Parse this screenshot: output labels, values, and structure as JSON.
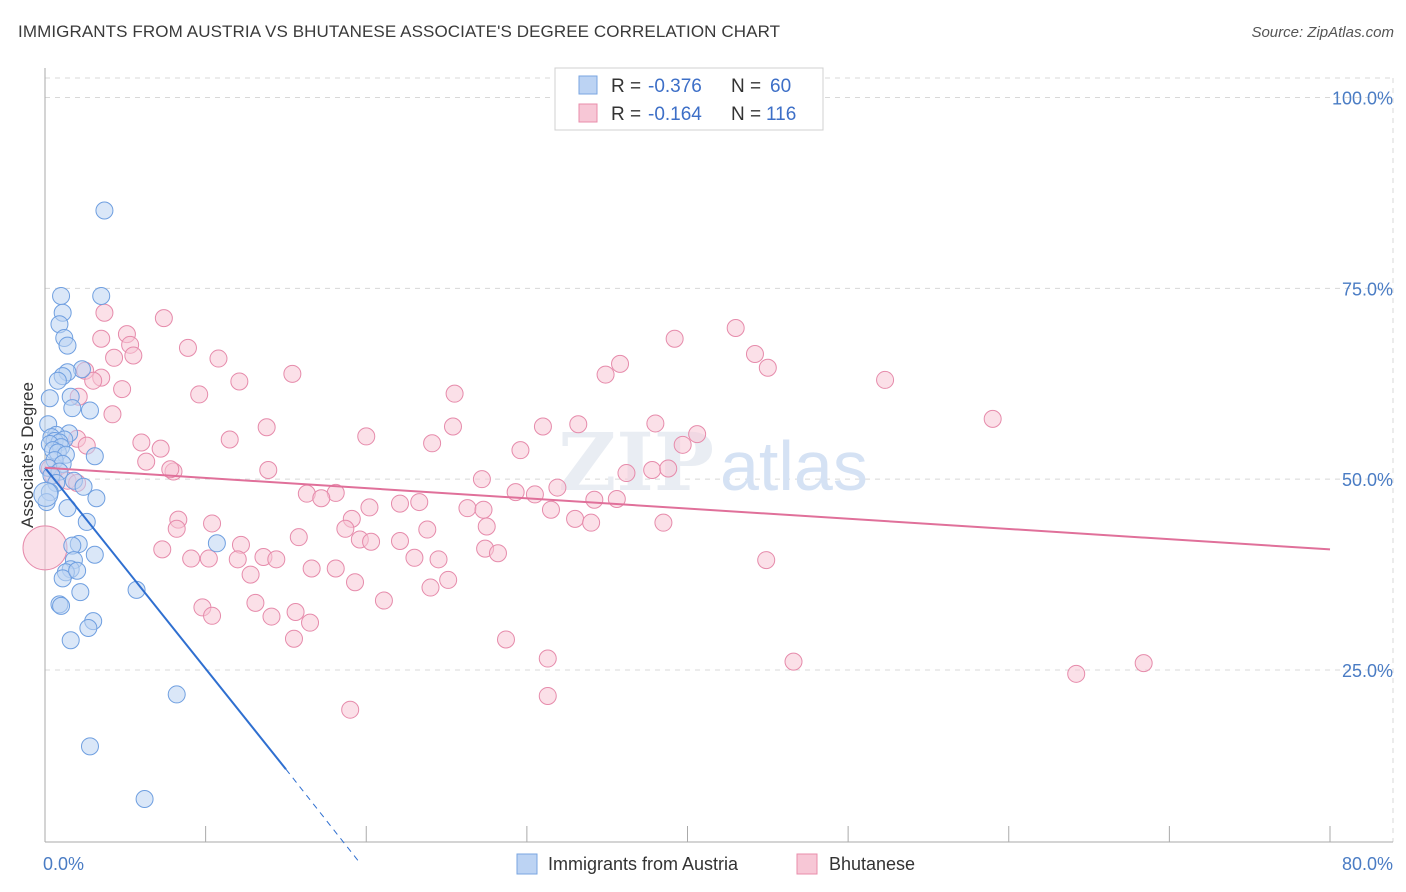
{
  "header": {
    "title": "IMMIGRANTS FROM AUSTRIA VS BHUTANESE ASSOCIATE'S DEGREE CORRELATION CHART",
    "source": "Source: ZipAtlas.com"
  },
  "watermark": {
    "part1": "ZIP",
    "part2": "atlas"
  },
  "legend": {
    "rows": [
      {
        "r_label": "R =",
        "r_value": "-0.376",
        "n_label": "N =",
        "n_value": "60",
        "color": "#7aa6e0",
        "fill": "#bcd3f3"
      },
      {
        "r_label": "R =",
        "r_value": "-0.164",
        "n_label": "N =",
        "n_value": "116",
        "color": "#e98cab",
        "fill": "#f7c7d6"
      }
    ]
  },
  "colors": {
    "blue": "#6f9fe0",
    "blue_line": "#2f6fd0",
    "pink": "#e68bab",
    "pink_line": "#e0709a",
    "grid": "#d8d8d8",
    "accent": "#4a7cc4"
  },
  "chart_data": {
    "type": "scatter",
    "title": "IMMIGRANTS FROM AUSTRIA VS BHUTANESE ASSOCIATE'S DEGREE CORRELATION CHART",
    "xlabel": "",
    "ylabel": "Associate's Degree",
    "xlim": [
      0,
      80
    ],
    "ylim": [
      0,
      105
    ],
    "x_tick_labels": [
      "0.0%",
      "80.0%"
    ],
    "y_ticks": [
      25,
      50,
      75,
      100
    ],
    "y_tick_labels": [
      "25.0%",
      "50.0%",
      "75.0%",
      "100.0%"
    ],
    "grid": true,
    "legend_position": "top-center",
    "series": [
      {
        "name": "Immigrants from Austria",
        "color": "#6f9fe0",
        "trend": {
          "x": [
            0,
            15
          ],
          "y": [
            51.5,
            12
          ],
          "dashed_to": [
            19.5,
            0
          ]
        },
        "points": [
          [
            3.7,
            85.2
          ],
          [
            1.0,
            74.0
          ],
          [
            3.5,
            74.0
          ],
          [
            1.1,
            71.8
          ],
          [
            0.9,
            70.3
          ],
          [
            1.2,
            68.5
          ],
          [
            1.4,
            67.5
          ],
          [
            2.3,
            64.4
          ],
          [
            1.4,
            64.0
          ],
          [
            1.1,
            63.5
          ],
          [
            0.8,
            62.9
          ],
          [
            1.6,
            60.8
          ],
          [
            0.3,
            60.6
          ],
          [
            1.7,
            59.3
          ],
          [
            2.8,
            59.0
          ],
          [
            0.2,
            57.2
          ],
          [
            1.5,
            56.0
          ],
          [
            0.7,
            55.8
          ],
          [
            0.4,
            55.5
          ],
          [
            1.2,
            55.2
          ],
          [
            0.6,
            55.0
          ],
          [
            0.9,
            54.8
          ],
          [
            0.3,
            54.6
          ],
          [
            1.0,
            54.2
          ],
          [
            0.5,
            53.8
          ],
          [
            0.8,
            53.5
          ],
          [
            1.3,
            53.2
          ],
          [
            3.1,
            53.0
          ],
          [
            0.6,
            52.5
          ],
          [
            1.1,
            52.0
          ],
          [
            0.2,
            51.5
          ],
          [
            0.9,
            51.0
          ],
          [
            0.4,
            50.5
          ],
          [
            1.8,
            49.8
          ],
          [
            0.7,
            49.5
          ],
          [
            2.4,
            49.0
          ],
          [
            0.3,
            48.3
          ],
          [
            3.2,
            47.5
          ],
          [
            0.1,
            47.0
          ],
          [
            1.4,
            46.2
          ],
          [
            2.6,
            44.4
          ],
          [
            2.1,
            41.5
          ],
          [
            1.7,
            41.3
          ],
          [
            10.7,
            41.6
          ],
          [
            3.1,
            40.1
          ],
          [
            1.8,
            39.4
          ],
          [
            1.6,
            38.2
          ],
          [
            1.3,
            37.8
          ],
          [
            1.1,
            37.0
          ],
          [
            2.2,
            35.2
          ],
          [
            5.7,
            35.5
          ],
          [
            0.9,
            33.6
          ],
          [
            1.0,
            33.4
          ],
          [
            3.0,
            31.4
          ],
          [
            2.7,
            30.5
          ],
          [
            1.6,
            28.9
          ],
          [
            8.2,
            21.8
          ],
          [
            2.8,
            15.0
          ],
          [
            6.2,
            8.1
          ],
          [
            2.0,
            38.0
          ]
        ]
      },
      {
        "name": "Bhutanese",
        "color": "#e68bab",
        "trend": {
          "x": [
            0,
            80
          ],
          "y": [
            51.5,
            40.8
          ]
        },
        "points": [
          [
            3.7,
            71.8
          ],
          [
            7.4,
            71.1
          ],
          [
            5.1,
            69.0
          ],
          [
            3.5,
            68.4
          ],
          [
            39.2,
            68.4
          ],
          [
            43.0,
            69.8
          ],
          [
            5.3,
            67.6
          ],
          [
            8.9,
            67.2
          ],
          [
            44.2,
            66.4
          ],
          [
            4.3,
            65.9
          ],
          [
            5.5,
            66.2
          ],
          [
            10.8,
            65.8
          ],
          [
            35.8,
            65.1
          ],
          [
            45.0,
            64.6
          ],
          [
            2.5,
            64.2
          ],
          [
            15.4,
            63.8
          ],
          [
            34.9,
            63.7
          ],
          [
            3.5,
            63.3
          ],
          [
            3.0,
            62.9
          ],
          [
            12.1,
            62.8
          ],
          [
            52.3,
            63.0
          ],
          [
            4.8,
            61.8
          ],
          [
            9.6,
            61.1
          ],
          [
            25.5,
            61.2
          ],
          [
            2.1,
            60.8
          ],
          [
            4.2,
            58.5
          ],
          [
            59.0,
            57.9
          ],
          [
            38.0,
            57.3
          ],
          [
            33.2,
            57.2
          ],
          [
            31.0,
            56.9
          ],
          [
            13.8,
            56.8
          ],
          [
            25.4,
            56.9
          ],
          [
            40.6,
            55.9
          ],
          [
            20.0,
            55.6
          ],
          [
            11.5,
            55.2
          ],
          [
            2.0,
            55.3
          ],
          [
            6.0,
            54.8
          ],
          [
            7.2,
            54.0
          ],
          [
            24.1,
            54.7
          ],
          [
            39.7,
            54.5
          ],
          [
            2.6,
            54.4
          ],
          [
            29.6,
            53.8
          ],
          [
            6.3,
            52.3
          ],
          [
            0.3,
            51.4
          ],
          [
            8.0,
            51.0
          ],
          [
            13.9,
            51.2
          ],
          [
            7.8,
            51.3
          ],
          [
            36.2,
            50.8
          ],
          [
            37.8,
            51.2
          ],
          [
            38.8,
            51.4
          ],
          [
            0.5,
            50.5
          ],
          [
            27.2,
            50.0
          ],
          [
            1.4,
            49.8
          ],
          [
            2.0,
            49.5
          ],
          [
            31.9,
            48.9
          ],
          [
            18.1,
            48.2
          ],
          [
            16.3,
            48.1
          ],
          [
            17.2,
            47.5
          ],
          [
            29.3,
            48.3
          ],
          [
            30.5,
            48.0
          ],
          [
            34.2,
            47.3
          ],
          [
            35.6,
            47.4
          ],
          [
            22.1,
            46.8
          ],
          [
            23.3,
            47.0
          ],
          [
            20.2,
            46.3
          ],
          [
            26.3,
            46.2
          ],
          [
            27.3,
            46.0
          ],
          [
            31.5,
            46.0
          ],
          [
            33.0,
            44.8
          ],
          [
            8.3,
            44.7
          ],
          [
            19.1,
            44.8
          ],
          [
            34.0,
            44.3
          ],
          [
            38.5,
            44.3
          ],
          [
            10.4,
            44.2
          ],
          [
            18.7,
            43.5
          ],
          [
            27.5,
            43.8
          ],
          [
            8.2,
            43.5
          ],
          [
            23.8,
            43.4
          ],
          [
            15.8,
            42.4
          ],
          [
            19.6,
            42.1
          ],
          [
            22.1,
            41.9
          ],
          [
            20.3,
            41.8
          ],
          [
            12.2,
            41.4
          ],
          [
            27.4,
            40.9
          ],
          [
            28.2,
            40.3
          ],
          [
            7.3,
            40.8
          ],
          [
            13.6,
            39.8
          ],
          [
            12.0,
            39.5
          ],
          [
            14.4,
            39.5
          ],
          [
            10.2,
            39.6
          ],
          [
            9.1,
            39.6
          ],
          [
            23.0,
            39.7
          ],
          [
            24.5,
            39.5
          ],
          [
            44.9,
            39.4
          ],
          [
            18.1,
            38.3
          ],
          [
            16.6,
            38.3
          ],
          [
            12.8,
            37.5
          ],
          [
            25.1,
            36.8
          ],
          [
            19.3,
            36.5
          ],
          [
            24.0,
            35.8
          ],
          [
            21.1,
            34.1
          ],
          [
            13.1,
            33.8
          ],
          [
            9.8,
            33.2
          ],
          [
            15.6,
            32.6
          ],
          [
            10.4,
            32.1
          ],
          [
            14.1,
            32.0
          ],
          [
            16.5,
            31.2
          ],
          [
            15.5,
            29.1
          ],
          [
            28.7,
            29.0
          ],
          [
            31.3,
            26.5
          ],
          [
            46.6,
            26.1
          ],
          [
            68.4,
            25.9
          ],
          [
            64.2,
            24.5
          ],
          [
            31.3,
            21.6
          ],
          [
            19.0,
            19.8
          ],
          [
            0.0,
            41.0
          ]
        ]
      }
    ]
  },
  "bottom_legend": [
    {
      "label": "Immigrants from Austria",
      "color": "#bcd3f3",
      "stroke": "#7aa6e0"
    },
    {
      "label": "Bhutanese",
      "color": "#f7c7d6",
      "stroke": "#e98cab"
    }
  ]
}
